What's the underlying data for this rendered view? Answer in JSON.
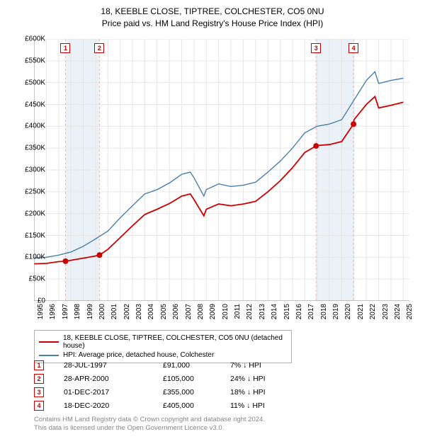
{
  "title_line1": "18, KEEBLE CLOSE, TIPTREE, COLCHESTER, CO5 0NU",
  "title_line2": "Price paid vs. HM Land Registry's House Price Index (HPI)",
  "chart": {
    "type": "line",
    "background_color": "#ffffff",
    "grid_color": "#e6e6e6",
    "shade_color": "#eaf1f7",
    "marker_line_color": "#f7b3b3",
    "ylim": [
      0,
      600000
    ],
    "ytick_step": 50000,
    "y_ticks": [
      "£0",
      "£50K",
      "£100K",
      "£150K",
      "£200K",
      "£250K",
      "£300K",
      "£350K",
      "£400K",
      "£450K",
      "£500K",
      "£550K",
      "£600K"
    ],
    "xlim": [
      1995,
      2025.5
    ],
    "x_ticks": [
      1995,
      1996,
      1997,
      1998,
      1999,
      2000,
      2001,
      2002,
      2003,
      2004,
      2005,
      2006,
      2007,
      2008,
      2009,
      2010,
      2011,
      2012,
      2013,
      2014,
      2015,
      2016,
      2017,
      2018,
      2019,
      2020,
      2021,
      2022,
      2023,
      2024,
      2025
    ],
    "series": [
      {
        "name": "18, KEEBLE CLOSE, TIPTREE, COLCHESTER, CO5 0NU (detached house)",
        "color": "#cc0000",
        "line_width": 1.8,
        "points": [
          [
            1995,
            85000
          ],
          [
            1996,
            86000
          ],
          [
            1997,
            90000
          ],
          [
            1997.56,
            91000
          ],
          [
            1998,
            93000
          ],
          [
            1999,
            98000
          ],
          [
            2000,
            103000
          ],
          [
            2000.32,
            105000
          ],
          [
            2001,
            118000
          ],
          [
            2002,
            145000
          ],
          [
            2003,
            172000
          ],
          [
            2004,
            198000
          ],
          [
            2005,
            210000
          ],
          [
            2006,
            223000
          ],
          [
            2007,
            240000
          ],
          [
            2007.7,
            245000
          ],
          [
            2008,
            232000
          ],
          [
            2008.8,
            195000
          ],
          [
            2009,
            210000
          ],
          [
            2010,
            222000
          ],
          [
            2011,
            218000
          ],
          [
            2012,
            222000
          ],
          [
            2013,
            228000
          ],
          [
            2014,
            250000
          ],
          [
            2015,
            275000
          ],
          [
            2016,
            305000
          ],
          [
            2017,
            340000
          ],
          [
            2017.92,
            355000
          ],
          [
            2018,
            356000
          ],
          [
            2019,
            358000
          ],
          [
            2020,
            365000
          ],
          [
            2020.96,
            405000
          ],
          [
            2021,
            415000
          ],
          [
            2022,
            450000
          ],
          [
            2022.7,
            468000
          ],
          [
            2023,
            442000
          ],
          [
            2024,
            448000
          ],
          [
            2025,
            455000
          ]
        ],
        "sale_markers": [
          {
            "x": 1997.56,
            "y": 91000
          },
          {
            "x": 2000.32,
            "y": 105000
          },
          {
            "x": 2017.92,
            "y": 355000
          },
          {
            "x": 2020.96,
            "y": 405000
          }
        ]
      },
      {
        "name": "HPI: Average price, detached house, Colchester",
        "color": "#4a7fb0",
        "line_width": 1.4,
        "points": [
          [
            1995,
            98000
          ],
          [
            1996,
            100000
          ],
          [
            1997,
            105000
          ],
          [
            1998,
            112000
          ],
          [
            1999,
            125000
          ],
          [
            2000,
            142000
          ],
          [
            2001,
            160000
          ],
          [
            2002,
            190000
          ],
          [
            2003,
            218000
          ],
          [
            2004,
            245000
          ],
          [
            2005,
            255000
          ],
          [
            2006,
            270000
          ],
          [
            2007,
            290000
          ],
          [
            2007.7,
            295000
          ],
          [
            2008,
            282000
          ],
          [
            2008.8,
            240000
          ],
          [
            2009,
            255000
          ],
          [
            2010,
            268000
          ],
          [
            2011,
            262000
          ],
          [
            2012,
            265000
          ],
          [
            2013,
            272000
          ],
          [
            2014,
            295000
          ],
          [
            2015,
            320000
          ],
          [
            2016,
            350000
          ],
          [
            2017,
            385000
          ],
          [
            2018,
            400000
          ],
          [
            2019,
            405000
          ],
          [
            2020,
            415000
          ],
          [
            2021,
            460000
          ],
          [
            2022,
            505000
          ],
          [
            2022.7,
            525000
          ],
          [
            2023,
            498000
          ],
          [
            2024,
            505000
          ],
          [
            2025,
            510000
          ]
        ]
      }
    ],
    "box_markers": [
      {
        "label": "1",
        "x": 1997.56,
        "color": "#cc0000"
      },
      {
        "label": "2",
        "x": 2000.32,
        "color": "#cc0000"
      },
      {
        "label": "3",
        "x": 2017.92,
        "color": "#cc0000"
      },
      {
        "label": "4",
        "x": 2020.96,
        "color": "#cc0000"
      }
    ]
  },
  "legend": [
    {
      "color": "#cc0000",
      "label": "18, KEEBLE CLOSE, TIPTREE, COLCHESTER, CO5 0NU (detached house)"
    },
    {
      "color": "#4a7fb0",
      "label": "HPI: Average price, detached house, Colchester"
    }
  ],
  "sales_table": [
    {
      "n": "1",
      "date": "28-JUL-1997",
      "price": "£91,000",
      "pct": "7% ↓ HPI",
      "color": "#cc0000"
    },
    {
      "n": "2",
      "date": "28-APR-2000",
      "price": "£105,000",
      "pct": "24% ↓ HPI",
      "color": "#cc0000"
    },
    {
      "n": "3",
      "date": "01-DEC-2017",
      "price": "£355,000",
      "pct": "18% ↓ HPI",
      "color": "#cc0000"
    },
    {
      "n": "4",
      "date": "18-DEC-2020",
      "price": "£405,000",
      "pct": "11% ↓ HPI",
      "color": "#cc0000"
    }
  ],
  "footer_line1": "Contains HM Land Registry data © Crown copyright and database right 2024.",
  "footer_line2": "This data is licensed under the Open Government Licence v3.0."
}
